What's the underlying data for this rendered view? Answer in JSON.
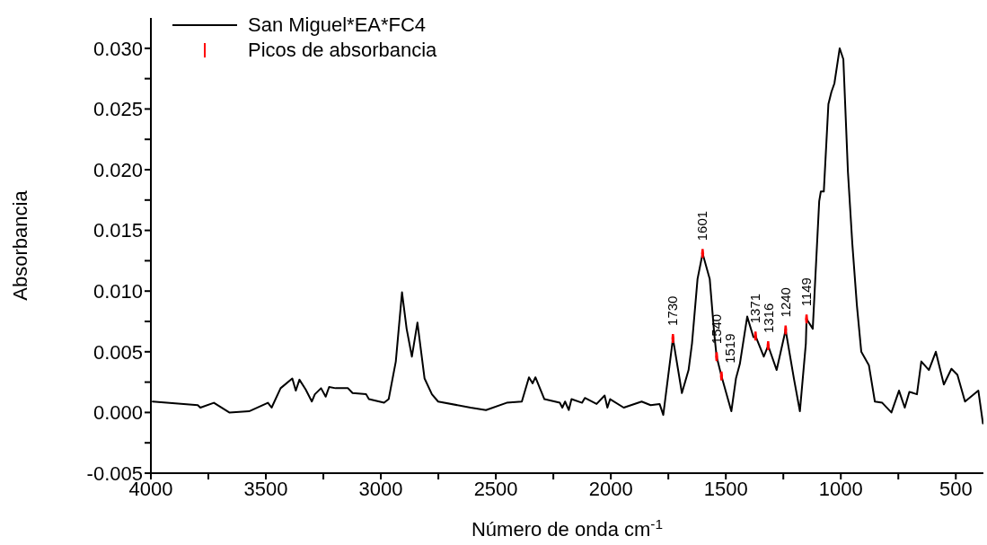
{
  "chart_data": {
    "type": "line",
    "xlabel": "Número de onda cm$^{-1}$",
    "ylabel": "Absorbancia",
    "xlim": [
      4000,
      380
    ],
    "xticks": [
      4000,
      {
        "value": 3750,
        "label": null
      },
      3500,
      {
        "value": 3250,
        "label": null
      },
      3000,
      {
        "value": 2750,
        "label": null
      },
      2500,
      {
        "value": 2250,
        "label": null
      },
      2000,
      {
        "value": 1750,
        "label": null
      },
      1500,
      {
        "value": 1250,
        "label": null
      },
      1000,
      {
        "value": 750,
        "label": null
      },
      500
    ],
    "ylim": [
      -0.005,
      0.0325
    ],
    "yticks": [
      {
        "value": -0.005,
        "label": "-0.005"
      },
      {
        "value": -0.0025,
        "label": null
      },
      {
        "value": 0,
        "label": "0.000"
      },
      {
        "value": 0.0025,
        "label": null
      },
      {
        "value": 0.005,
        "label": "0.005"
      },
      {
        "value": 0.0075,
        "label": null
      },
      {
        "value": 0.01,
        "label": "0.010"
      },
      {
        "value": 0.0125,
        "label": null
      },
      {
        "value": 0.015,
        "label": "0.015"
      },
      {
        "value": 0.0175,
        "label": null
      },
      {
        "value": 0.02,
        "label": "0.020"
      },
      {
        "value": 0.0225,
        "label": null
      },
      {
        "value": 0.025,
        "label": "0.025"
      },
      {
        "value": 0.0275,
        "label": null
      },
      {
        "value": 0.03,
        "label": "0.030"
      }
    ],
    "legend": "top left",
    "series": [
      {
        "name": "San Miguel*EA*FC4",
        "color": "#000000",
        "x": [
          3992,
          3796,
          3785,
          3726,
          3659,
          3573,
          3491,
          3475,
          3436,
          3385,
          3370,
          3354,
          3327,
          3300,
          3287,
          3260,
          3240,
          3225,
          3197,
          3143,
          3123,
          3064,
          3052,
          2986,
          2966,
          2935,
          2908,
          2888,
          2865,
          2841,
          2810,
          2778,
          2751,
          2610,
          2543,
          2453,
          2387,
          2356,
          2340,
          2328,
          2289,
          2222,
          2211,
          2199,
          2183,
          2171,
          2125,
          2113,
          2062,
          2027,
          2015,
          2003,
          1944,
          1866,
          1827,
          1788,
          1772,
          1730,
          1691,
          1662,
          1647,
          1623,
          1601,
          1570,
          1550,
          1540,
          1519,
          1476,
          1456,
          1439,
          1407,
          1380,
          1371,
          1335,
          1316,
          1279,
          1240,
          1204,
          1178,
          1152,
          1149,
          1122,
          1094,
          1087,
          1074,
          1054,
          1041,
          1028,
          1005,
          989,
          969,
          950,
          930,
          911,
          878,
          852,
          820,
          780,
          747,
          722,
          702,
          669,
          650,
          617,
          587,
          552,
          519,
          493,
          460,
          402,
          382
        ],
        "values": [
          0.0009,
          0.0006,
          0.0004,
          0.0008,
          0.0,
          0.0001,
          0.0008,
          0.0004,
          0.002,
          0.0028,
          0.0018,
          0.0027,
          0.0019,
          0.0009,
          0.0015,
          0.002,
          0.0013,
          0.0021,
          0.002,
          0.002,
          0.0016,
          0.0015,
          0.0011,
          0.0008,
          0.0011,
          0.0042,
          0.0099,
          0.0069,
          0.0046,
          0.0074,
          0.0028,
          0.0015,
          0.0009,
          0.0004,
          0.0002,
          0.0008,
          0.0009,
          0.0029,
          0.0024,
          0.0029,
          0.0011,
          0.0008,
          0.0004,
          0.0009,
          0.0002,
          0.0011,
          0.0008,
          0.0012,
          0.0007,
          0.0014,
          0.0004,
          0.0011,
          0.0004,
          0.0009,
          0.0006,
          0.0007,
          -0.0002,
          0.0061,
          0.0016,
          0.0035,
          0.0057,
          0.011,
          0.0131,
          0.011,
          0.0064,
          0.0046,
          0.003,
          0.0001,
          0.0028,
          0.004,
          0.0079,
          0.0062,
          0.0063,
          0.0046,
          0.0055,
          0.0035,
          0.0068,
          0.0028,
          0.0001,
          0.0057,
          0.0077,
          0.0069,
          0.0174,
          0.0182,
          0.0182,
          0.0254,
          0.0264,
          0.0271,
          0.03,
          0.0291,
          0.0198,
          0.0139,
          0.0088,
          0.005,
          0.0039,
          0.0009,
          0.0008,
          0.0,
          0.0018,
          0.0004,
          0.0017,
          0.0015,
          0.0042,
          0.0035,
          0.005,
          0.0023,
          0.0036,
          0.0031,
          0.0009,
          0.0018,
          -0.0009
        ]
      },
      {
        "name": "Picos de absorbancia",
        "type": "scatter",
        "color": "#ff0000",
        "x": [
          1730,
          1601,
          1540,
          1519,
          1371,
          1316,
          1240,
          1149
        ],
        "values": [
          0.0061,
          0.0131,
          0.0046,
          0.003,
          0.0063,
          0.0055,
          0.0068,
          0.0077
        ]
      }
    ],
    "annotations": [
      {
        "text": "1730",
        "x": 1730,
        "y": 0.0061
      },
      {
        "text": "1601",
        "x": 1601,
        "y": 0.0131
      },
      {
        "text": "1540",
        "x": 1540,
        "y": 0.0046
      },
      {
        "text": "1519",
        "x": 1519,
        "y": 0.003
      },
      {
        "text": "1371",
        "x": 1371,
        "y": 0.0063
      },
      {
        "text": "1316",
        "x": 1316,
        "y": 0.0055
      },
      {
        "text": "1240",
        "x": 1240,
        "y": 0.0068
      },
      {
        "text": "1149",
        "x": 1149,
        "y": 0.0077
      }
    ]
  }
}
